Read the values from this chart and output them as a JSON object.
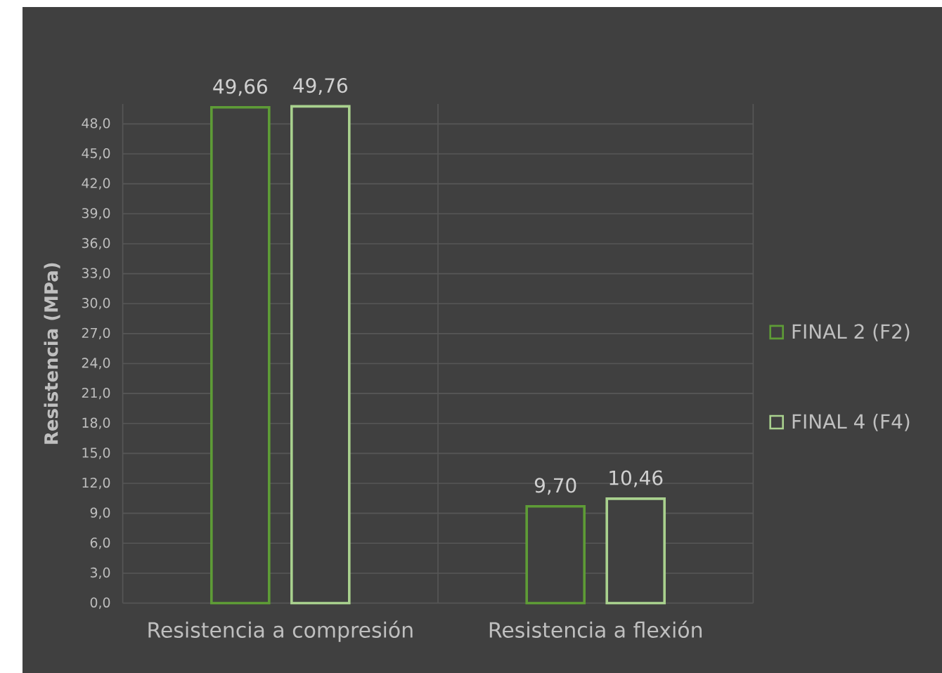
{
  "chart_data": {
    "type": "bar",
    "ylabel": "Resistencia (MPa)",
    "categories": [
      "Resistencia a compresión",
      "Resistencia a flexión"
    ],
    "series": [
      {
        "name": "FINAL 2 (F2)",
        "color": "#5e9c36",
        "values": [
          49.66,
          9.7
        ],
        "value_labels": [
          "49,66",
          "9,70"
        ]
      },
      {
        "name": "FINAL 4 (F4)",
        "color": "#a9d18e",
        "values": [
          49.76,
          10.46
        ],
        "value_labels": [
          "49,76",
          "10,46"
        ]
      }
    ],
    "ylim": [
      0,
      50
    ],
    "yticks": [
      {
        "value": 0,
        "label": "0,0"
      },
      {
        "value": 3,
        "label": "3,0"
      },
      {
        "value": 6,
        "label": "6,0"
      },
      {
        "value": 9,
        "label": "9,0"
      },
      {
        "value": 12,
        "label": "12,0"
      },
      {
        "value": 15,
        "label": "15,0"
      },
      {
        "value": 18,
        "label": "18,0"
      },
      {
        "value": 21,
        "label": "21,0"
      },
      {
        "value": 24,
        "label": "24,0"
      },
      {
        "value": 27,
        "label": "27,0"
      },
      {
        "value": 30,
        "label": "30,0"
      },
      {
        "value": 33,
        "label": "33,0"
      },
      {
        "value": 36,
        "label": "36,0"
      },
      {
        "value": 39,
        "label": "39,0"
      },
      {
        "value": 42,
        "label": "42,0"
      },
      {
        "value": 45,
        "label": "45,0"
      },
      {
        "value": 48,
        "label": "48,0"
      }
    ],
    "grid": true,
    "legend": "right"
  }
}
